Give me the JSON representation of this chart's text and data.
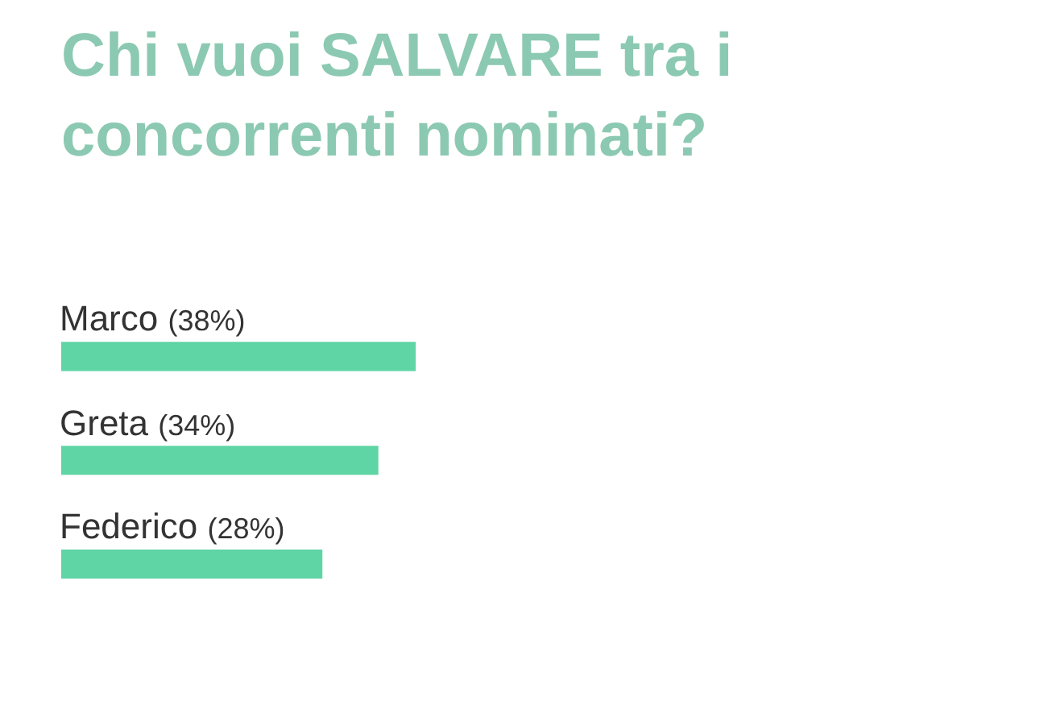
{
  "chart_data": {
    "type": "bar",
    "orientation": "horizontal",
    "title": "Chi vuoi SALVARE tra i concorrenti nominati?",
    "categories": [
      "Marco",
      "Greta",
      "Federico"
    ],
    "values": [
      38,
      34,
      28
    ],
    "value_labels": [
      "(38%)",
      "(34%)",
      "(28%)"
    ],
    "color": "#5fd4a5",
    "legend": false
  }
}
